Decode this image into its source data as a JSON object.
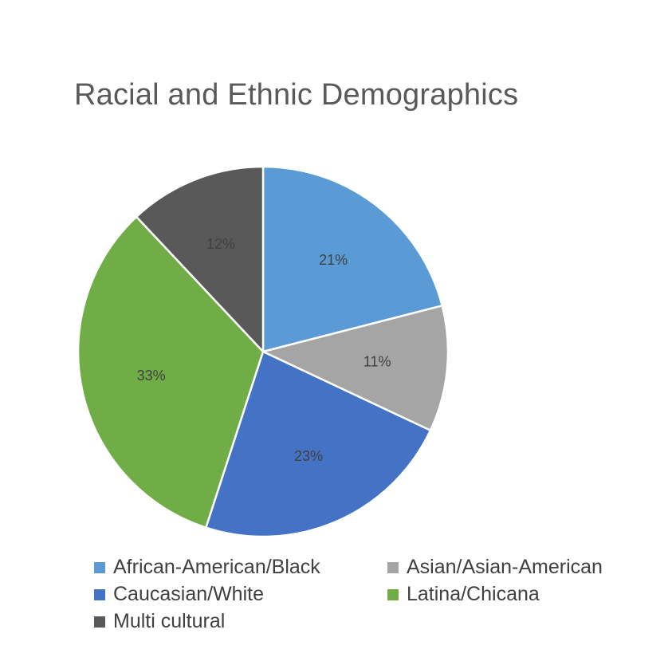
{
  "chart_data": {
    "type": "pie",
    "title": "Racial and Ethnic Demographics",
    "start_angle_deg": 0,
    "direction": "clockwise",
    "slices": [
      {
        "label": "African-American/Black",
        "value": 21,
        "display": "21%",
        "color": "#5B9BD5"
      },
      {
        "label": "Asian/Asian-American",
        "value": 11,
        "display": "11%",
        "color": "#A5A5A5"
      },
      {
        "label": "Caucasian/White",
        "value": 23,
        "display": "23%",
        "color": "#4472C4"
      },
      {
        "label": "Latina/Chicana",
        "value": 33,
        "display": "33%",
        "color": "#70AD47"
      },
      {
        "label": "Multi cultural",
        "value": 12,
        "display": "12%",
        "color": "#595959"
      }
    ],
    "legend_position": "bottom"
  }
}
